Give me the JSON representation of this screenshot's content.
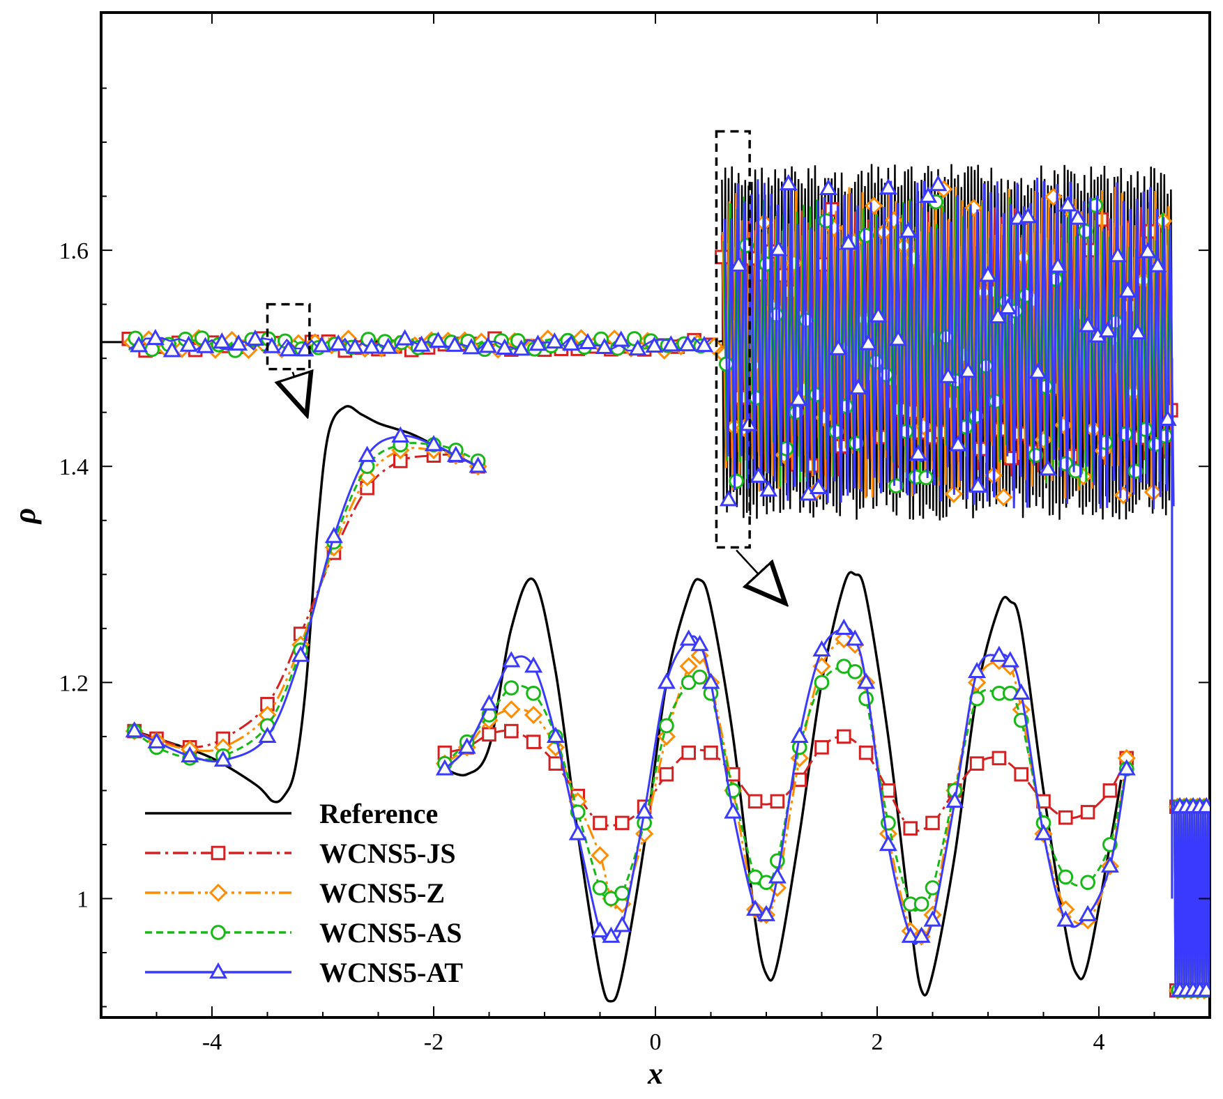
{
  "chart_data": {
    "type": "line",
    "title": "",
    "xlabel": "x",
    "ylabel": "ρ",
    "xlim": [
      -5,
      5
    ],
    "ylim": [
      0.89,
      1.82
    ],
    "grid": false,
    "legend_position": "bottom-left",
    "x_ticks": [
      -4,
      -2,
      0,
      2,
      4
    ],
    "x_tick_labels": [
      "-4",
      "-2",
      "0",
      "2",
      "4"
    ],
    "y_ticks": [
      1.0,
      1.2,
      1.4,
      1.6
    ],
    "y_tick_labels": [
      "1",
      "1.2",
      "1.4",
      "1.6"
    ],
    "colors": {
      "Reference": "#000000",
      "WCNS5-JS": "#d42020",
      "WCNS5-Z": "#ff8c00",
      "WCNS5-AS": "#16b816",
      "WCNS5-AT": "#3a3aff"
    },
    "series": [
      {
        "name": "Reference",
        "line_style": "solid",
        "marker": "none",
        "profile": {
          "x": [
            -5,
            -4.7,
            -4.5,
            -4.2,
            -4.0,
            -3.8,
            -3.6,
            -3.5,
            -3.4,
            -3.3,
            -3.2,
            -3.1,
            -3.0,
            -2.95,
            -2.9,
            -2.8,
            -2.7,
            -2.6,
            -2.5,
            -2.4,
            -2.3,
            -2.2,
            -2.1,
            -2.0,
            -1.9,
            -1.75,
            -1.6,
            -1.5,
            -1.4,
            -1.3,
            -1.2,
            -1.1,
            -1.0,
            -0.9,
            -0.8,
            -0.7,
            -0.6,
            -0.5,
            -0.4,
            -0.3,
            -0.2,
            -0.1,
            0.0,
            0.1,
            0.2,
            0.3,
            0.4,
            0.5,
            0.6,
            0.7,
            0.8,
            0.9,
            1.0,
            1.1,
            1.2,
            1.3,
            1.4,
            1.5,
            1.6,
            1.7,
            1.8,
            1.9,
            2.0,
            2.1,
            2.2,
            2.3,
            2.4,
            2.5,
            2.6,
            2.7,
            2.8,
            2.9,
            3.0,
            3.1,
            3.2,
            3.3,
            3.4,
            3.5,
            3.6,
            3.7,
            3.8,
            3.9,
            4.0,
            4.1,
            4.2,
            4.3,
            4.4,
            4.5,
            4.6,
            4.65
          ],
          "y": [
            1.515,
            1.515,
            1.516,
            1.514,
            1.516,
            1.514,
            1.516,
            1.514,
            1.516,
            1.514,
            1.516,
            1.514,
            1.516,
            1.514,
            1.516,
            1.514,
            1.516,
            1.514,
            1.516,
            1.514,
            1.516,
            1.514,
            1.516,
            1.514,
            1.516,
            1.514,
            1.516,
            1.514,
            1.516,
            1.514,
            1.516,
            1.514,
            1.516,
            1.514,
            1.516,
            1.514,
            1.516,
            1.514,
            1.516,
            1.514,
            1.516,
            1.514,
            1.516,
            1.514,
            1.516,
            1.514,
            1.516,
            1.514,
            1.516,
            1.514,
            1.516,
            1.514,
            1.516,
            1.514,
            1.516,
            1.514,
            1.516,
            1.514,
            1.516,
            1.514,
            1.516,
            1.514,
            1.516,
            1.514,
            1.516,
            1.514,
            1.516,
            1.514,
            1.516,
            1.514,
            1.516,
            1.514,
            1.516,
            1.514,
            1.516,
            1.514,
            1.516,
            1.514,
            1.516,
            1.514,
            1.516,
            1.514,
            1.516,
            1.514,
            1.516,
            1.514,
            1.516,
            1.514,
            1.516,
            1.515
          ]
        },
        "oscillation_band": {
          "x_range": [
            0.6,
            4.65
          ],
          "y_min": 1.35,
          "y_max": 1.68
        },
        "post_shock": {
          "x_range": [
            4.7,
            5.0
          ],
          "y_min": 0.91,
          "y_max": 1.09
        }
      },
      {
        "name": "WCNS5-JS",
        "line_style": "dashdot",
        "marker": "square",
        "oscillation_band": {
          "x_range": [
            0.6,
            4.65
          ],
          "y_min": 1.39,
          "y_max": 1.64
        }
      },
      {
        "name": "WCNS5-Z",
        "line_style": "dashdotdot",
        "marker": "diamond",
        "oscillation_band": {
          "x_range": [
            0.6,
            4.65
          ],
          "y_min": 1.37,
          "y_max": 1.66
        }
      },
      {
        "name": "WCNS5-AS",
        "line_style": "dashed",
        "marker": "circle",
        "oscillation_band": {
          "x_range": [
            0.6,
            4.65
          ],
          "y_min": 1.38,
          "y_max": 1.65
        }
      },
      {
        "name": "WCNS5-AT",
        "line_style": "solid",
        "marker": "triangle",
        "oscillation_band": {
          "x_range": [
            0.6,
            4.65
          ],
          "y_min": 1.36,
          "y_max": 1.67
        }
      }
    ],
    "insets": [
      {
        "name": "left-zoom",
        "source_box": {
          "x": [
            -3.5,
            -3.12
          ],
          "y": [
            1.49,
            1.55
          ]
        },
        "description_series": {
          "Reference": {
            "x": [
              -4.7,
              -4.4,
              -4.0,
              -3.6,
              -3.45,
              -3.35,
              -3.25,
              -3.15,
              -3.05,
              -2.95,
              -2.8,
              -2.65,
              -2.5,
              -2.35,
              -2.2,
              -2.0,
              -1.8,
              -1.6
            ],
            "y": [
              1.155,
              1.145,
              1.13,
              1.105,
              1.09,
              1.095,
              1.12,
              1.2,
              1.34,
              1.43,
              1.455,
              1.448,
              1.44,
              1.435,
              1.43,
              1.42,
              1.41,
              1.4
            ]
          },
          "WCNS5-JS": {
            "x": [
              -4.7,
              -4.5,
              -4.2,
              -3.9,
              -3.5,
              -3.2,
              -2.9,
              -2.6,
              -2.3,
              -2.0,
              -1.8,
              -1.6
            ],
            "y": [
              1.155,
              1.148,
              1.14,
              1.148,
              1.18,
              1.245,
              1.32,
              1.38,
              1.405,
              1.41,
              1.41,
              1.4
            ]
          },
          "WCNS5-Z": {
            "x": [
              -4.7,
              -4.5,
              -4.2,
              -3.9,
              -3.5,
              -3.2,
              -2.9,
              -2.6,
              -2.3,
              -2.0,
              -1.8,
              -1.6
            ],
            "y": [
              1.155,
              1.146,
              1.138,
              1.14,
              1.17,
              1.235,
              1.325,
              1.39,
              1.415,
              1.415,
              1.41,
              1.4
            ]
          },
          "WCNS5-AS": {
            "x": [
              -4.7,
              -4.5,
              -4.2,
              -3.9,
              -3.5,
              -3.2,
              -2.9,
              -2.6,
              -2.3,
              -2.0,
              -1.8,
              -1.6
            ],
            "y": [
              1.155,
              1.14,
              1.13,
              1.132,
              1.16,
              1.23,
              1.33,
              1.4,
              1.42,
              1.42,
              1.415,
              1.405
            ]
          },
          "WCNS5-AT": {
            "x": [
              -4.7,
              -4.5,
              -4.2,
              -3.9,
              -3.5,
              -3.2,
              -2.9,
              -2.6,
              -2.3,
              -2.0,
              -1.8,
              -1.6
            ],
            "y": [
              1.155,
              1.145,
              1.132,
              1.128,
              1.15,
              1.225,
              1.335,
              1.41,
              1.428,
              1.42,
              1.41,
              1.4
            ]
          }
        }
      },
      {
        "name": "right-zoom",
        "source_box": {
          "x": [
            0.55,
            0.85
          ],
          "y": [
            1.325,
            1.71
          ]
        },
        "description_series": {
          "Reference": {
            "x": [
              -1.9,
              -1.7,
              -1.5,
              -1.3,
              -1.1,
              -0.9,
              -0.7,
              -0.5,
              -0.4,
              -0.3,
              -0.1,
              0.1,
              0.3,
              0.4,
              0.5,
              0.7,
              0.9,
              1.0,
              1.1,
              1.3,
              1.5,
              1.7,
              1.8,
              1.9,
              2.1,
              2.3,
              2.4,
              2.5,
              2.7,
              2.9,
              3.1,
              3.2,
              3.3,
              3.5,
              3.7,
              3.8,
              3.9,
              4.1,
              4.2
            ],
            "y": [
              1.12,
              1.115,
              1.14,
              1.25,
              1.295,
              1.21,
              1.06,
              0.93,
              0.905,
              0.93,
              1.05,
              1.2,
              1.28,
              1.295,
              1.27,
              1.15,
              0.98,
              0.93,
              0.94,
              1.06,
              1.2,
              1.29,
              1.3,
              1.28,
              1.15,
              0.98,
              0.915,
              0.93,
              1.04,
              1.19,
              1.27,
              1.275,
              1.25,
              1.1,
              0.97,
              0.93,
              0.94,
              1.05,
              1.11
            ]
          },
          "WCNS5-JS": {
            "x": [
              -1.9,
              -1.7,
              -1.5,
              -1.3,
              -1.1,
              -0.9,
              -0.7,
              -0.5,
              -0.3,
              -0.1,
              0.1,
              0.3,
              0.5,
              0.7,
              0.9,
              1.1,
              1.3,
              1.5,
              1.7,
              1.9,
              2.1,
              2.3,
              2.5,
              2.7,
              2.9,
              3.1,
              3.3,
              3.5,
              3.7,
              3.9,
              4.1,
              4.25
            ],
            "y": [
              1.135,
              1.14,
              1.152,
              1.155,
              1.145,
              1.125,
              1.095,
              1.07,
              1.07,
              1.085,
              1.115,
              1.135,
              1.135,
              1.115,
              1.09,
              1.09,
              1.11,
              1.14,
              1.15,
              1.135,
              1.1,
              1.065,
              1.07,
              1.1,
              1.125,
              1.13,
              1.115,
              1.09,
              1.075,
              1.08,
              1.1,
              1.13
            ]
          },
          "WCNS5-Z": {
            "x": [
              -1.9,
              -1.7,
              -1.5,
              -1.3,
              -1.1,
              -0.9,
              -0.7,
              -0.5,
              -0.4,
              -0.3,
              -0.1,
              0.1,
              0.3,
              0.4,
              0.5,
              0.7,
              0.9,
              1.0,
              1.1,
              1.3,
              1.5,
              1.7,
              1.8,
              1.9,
              2.1,
              2.3,
              2.4,
              2.5,
              2.7,
              2.9,
              3.1,
              3.2,
              3.3,
              3.5,
              3.7,
              3.9,
              4.1,
              4.25
            ],
            "y": [
              1.125,
              1.14,
              1.165,
              1.175,
              1.17,
              1.14,
              1.09,
              1.04,
              1.0,
              0.995,
              1.06,
              1.15,
              1.215,
              1.225,
              1.2,
              1.1,
              0.99,
              0.985,
              1.01,
              1.13,
              1.215,
              1.24,
              1.235,
              1.2,
              1.06,
              0.97,
              0.965,
              0.985,
              1.1,
              1.2,
              1.22,
              1.215,
              1.175,
              1.06,
              0.99,
              0.98,
              1.03,
              1.13
            ]
          },
          "WCNS5-AS": {
            "x": [
              -1.9,
              -1.7,
              -1.5,
              -1.3,
              -1.1,
              -0.9,
              -0.7,
              -0.5,
              -0.4,
              -0.3,
              -0.1,
              0.1,
              0.3,
              0.4,
              0.5,
              0.7,
              0.9,
              1.0,
              1.1,
              1.3,
              1.5,
              1.7,
              1.8,
              1.9,
              2.1,
              2.3,
              2.4,
              2.5,
              2.7,
              2.9,
              3.1,
              3.2,
              3.3,
              3.5,
              3.7,
              3.9,
              4.1,
              4.25
            ],
            "y": [
              1.125,
              1.145,
              1.17,
              1.195,
              1.19,
              1.15,
              1.08,
              1.01,
              1.0,
              1.005,
              1.07,
              1.16,
              1.2,
              1.205,
              1.19,
              1.1,
              1.02,
              1.015,
              1.035,
              1.14,
              1.2,
              1.215,
              1.21,
              1.185,
              1.07,
              0.995,
              0.995,
              1.01,
              1.1,
              1.185,
              1.19,
              1.19,
              1.165,
              1.07,
              1.02,
              1.015,
              1.05,
              1.12
            ]
          },
          "WCNS5-AT": {
            "x": [
              -1.9,
              -1.7,
              -1.5,
              -1.3,
              -1.1,
              -0.9,
              -0.7,
              -0.5,
              -0.4,
              -0.3,
              -0.1,
              0.1,
              0.3,
              0.4,
              0.5,
              0.7,
              0.9,
              1.0,
              1.1,
              1.3,
              1.5,
              1.7,
              1.8,
              1.9,
              2.1,
              2.3,
              2.4,
              2.5,
              2.7,
              2.9,
              3.1,
              3.2,
              3.3,
              3.5,
              3.7,
              3.9,
              4.1,
              4.25
            ],
            "y": [
              1.12,
              1.14,
              1.18,
              1.22,
              1.215,
              1.15,
              1.06,
              0.97,
              0.965,
              0.975,
              1.08,
              1.2,
              1.24,
              1.235,
              1.2,
              1.08,
              0.99,
              0.985,
              1.02,
              1.15,
              1.23,
              1.25,
              1.24,
              1.2,
              1.05,
              0.965,
              0.965,
              0.98,
              1.09,
              1.21,
              1.225,
              1.22,
              1.19,
              1.06,
              0.98,
              0.985,
              1.03,
              1.12
            ]
          }
        }
      }
    ]
  }
}
